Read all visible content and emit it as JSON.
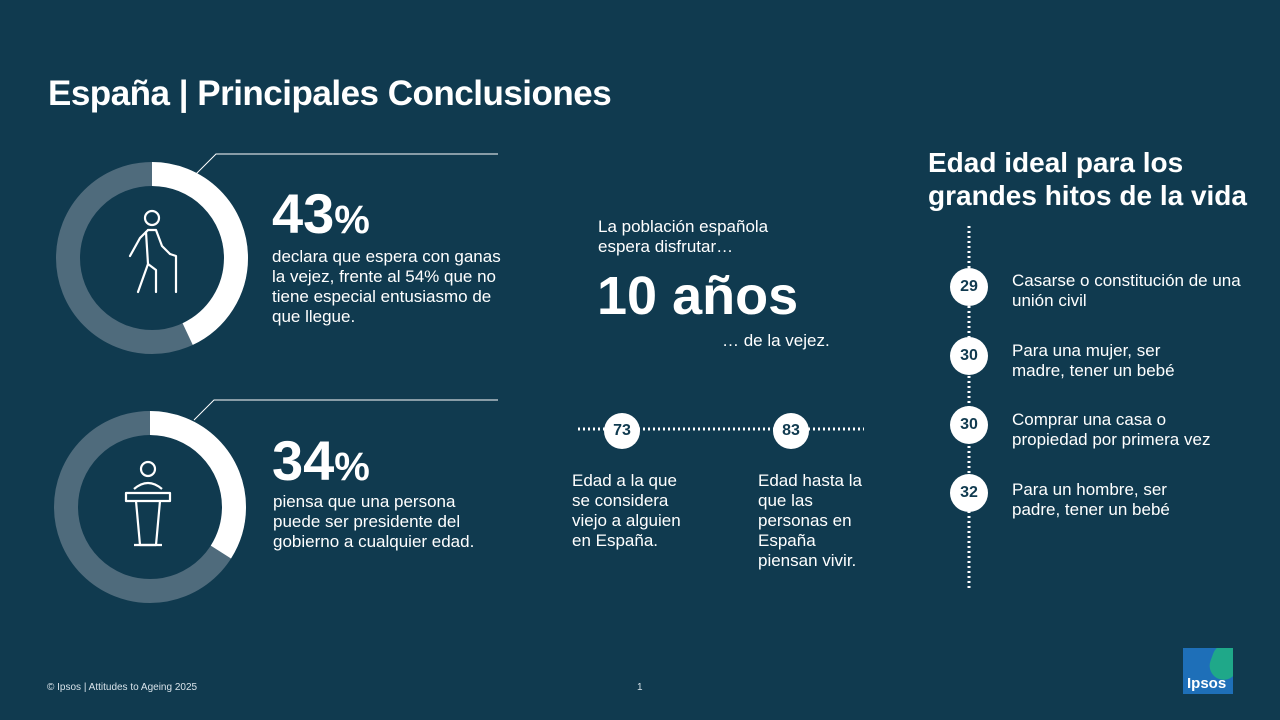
{
  "title": "España | Principales Conclusiones",
  "stat1": {
    "value": "43",
    "unit": "%",
    "description": "declara que espera con ganas la vejez, frente al 54% que no tiene especial entusiasmo de que llegue.",
    "fraction": 0.43,
    "icon": "elderly-person-icon"
  },
  "stat2": {
    "value": "34",
    "unit": "%",
    "description": "piensa que una persona puede ser  presidente del gobierno a cualquier edad.",
    "fraction": 0.34,
    "icon": "podium-speaker-icon"
  },
  "life": {
    "intro": "La población española espera disfrutar…",
    "value": "10 años",
    "suffix": "… de la vejez."
  },
  "ages": [
    {
      "value": "73",
      "text": "Edad a la que se considera viejo a alguien en España."
    },
    {
      "value": "83",
      "text": "Edad hasta la que las personas en España piensan vivir."
    }
  ],
  "milestones": {
    "title": "Edad ideal para los grandes hitos de la vida",
    "items": [
      {
        "age": "29",
        "text": "Casarse o constitución de una unión civil"
      },
      {
        "age": "30",
        "text": "Para una mujer, ser madre, tener un bebé"
      },
      {
        "age": "30",
        "text": "Comprar una casa o propiedad por primera vez"
      },
      {
        "age": "32",
        "text": "Para un hombre, ser padre, tener un bebé"
      }
    ]
  },
  "footer": "© Ipsos | Attitudes to Ageing 2025",
  "page_number": "1",
  "logo_text": "Ipsos",
  "colors": {
    "background": "#103a4f",
    "ring_track": "#4f6b7c",
    "ring_fill": "#ffffff"
  }
}
